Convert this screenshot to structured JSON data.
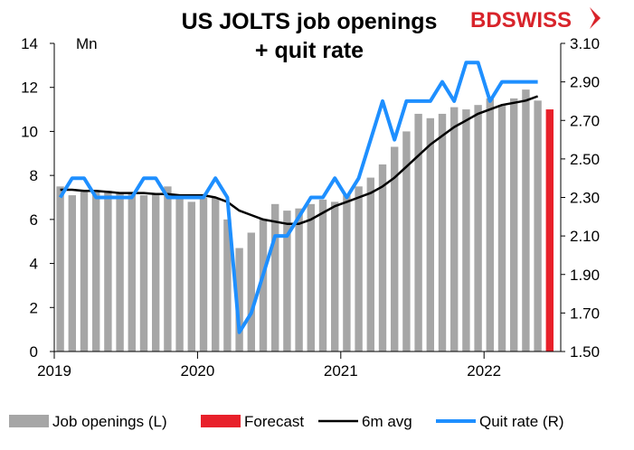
{
  "chart_data": {
    "type": "bar",
    "title_lines": [
      "US JOLTS job openings",
      "+ quit rate"
    ],
    "left_unit": "Mn",
    "left_axis": {
      "min": 0,
      "max": 14,
      "ticks": [
        "0",
        "2",
        "4",
        "6",
        "8",
        "10",
        "12",
        "14"
      ]
    },
    "right_axis": {
      "min": 1.5,
      "max": 3.1,
      "ticks": [
        "1.50",
        "1.70",
        "1.90",
        "2.10",
        "2.30",
        "2.50",
        "2.70",
        "2.90",
        "3.10"
      ]
    },
    "x_labels": [
      "2019",
      "2020",
      "2021",
      "2022"
    ],
    "x_start": "2019-01",
    "series": [
      {
        "name": "Job openings (L)",
        "color": "#a6a6a6",
        "values": [
          7.5,
          7.1,
          7.3,
          7.3,
          7.3,
          7.2,
          7.2,
          7.1,
          7.2,
          7.5,
          7.0,
          6.8,
          7.0,
          7.0,
          6.0,
          4.7,
          5.4,
          6.0,
          6.7,
          6.4,
          6.5,
          6.7,
          6.9,
          6.8,
          7.1,
          7.5,
          7.9,
          8.5,
          9.3,
          10.0,
          10.8,
          10.6,
          10.8,
          11.1,
          11.0,
          11.2,
          11.5,
          11.2,
          11.5,
          11.9,
          11.4
        ]
      },
      {
        "name": "Forecast",
        "color": "#e8202a",
        "index": 41,
        "value": 11.0
      },
      {
        "name": "6m avg",
        "color": "#000000",
        "values": [
          7.35,
          7.35,
          7.3,
          7.3,
          7.25,
          7.2,
          7.2,
          7.2,
          7.15,
          7.15,
          7.1,
          7.1,
          7.1,
          7.0,
          6.8,
          6.4,
          6.2,
          6.0,
          5.9,
          5.8,
          5.8,
          6.0,
          6.3,
          6.6,
          6.8,
          7.0,
          7.2,
          7.5,
          7.9,
          8.4,
          8.9,
          9.4,
          9.8,
          10.2,
          10.5,
          10.8,
          11.0,
          11.2,
          11.3,
          11.4,
          11.6
        ]
      },
      {
        "name": "Quit rate (R)",
        "color": "#1e8fff",
        "values": [
          2.3,
          2.4,
          2.4,
          2.3,
          2.3,
          2.3,
          2.3,
          2.4,
          2.4,
          2.3,
          2.3,
          2.3,
          2.3,
          2.4,
          2.3,
          1.6,
          1.7,
          1.9,
          2.1,
          2.1,
          2.2,
          2.3,
          2.3,
          2.4,
          2.3,
          2.4,
          2.6,
          2.8,
          2.6,
          2.8,
          2.8,
          2.8,
          2.9,
          2.8,
          3.0,
          3.0,
          2.8,
          2.9,
          2.9,
          2.9,
          2.9
        ]
      }
    ],
    "legend_placement": "bottom",
    "grid": false
  },
  "logo": {
    "text": "BDSWISS"
  }
}
